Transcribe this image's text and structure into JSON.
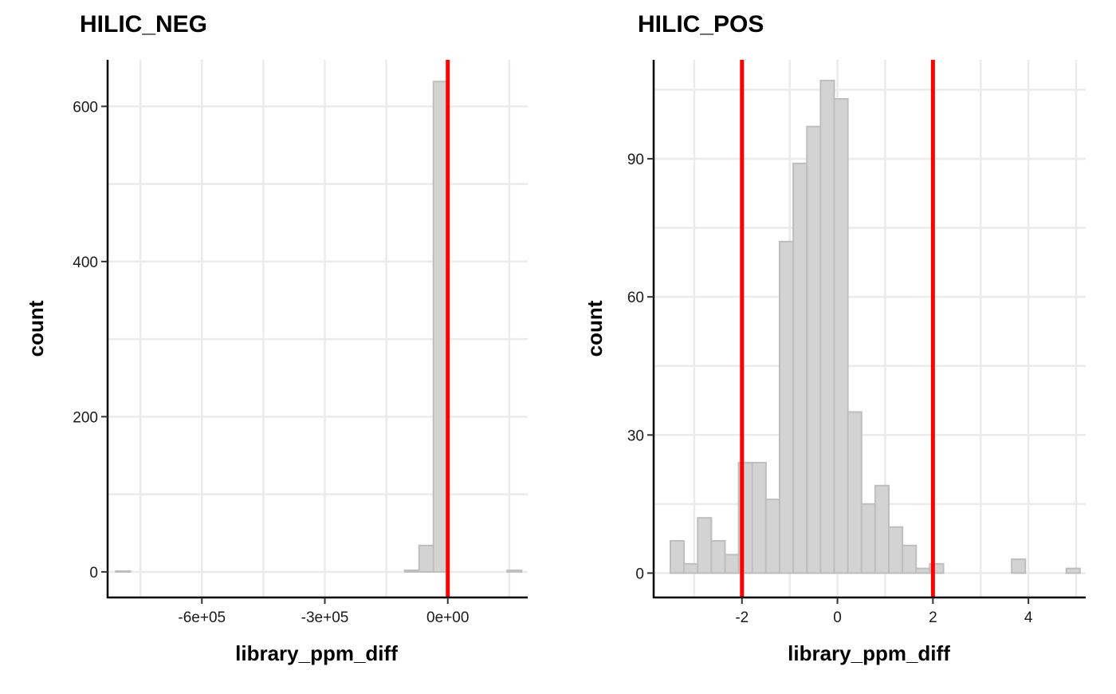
{
  "chart_data": [
    {
      "type": "bar",
      "title": "HILIC_NEG",
      "xlabel": "library_ppm_diff",
      "ylabel": "count",
      "xlim": [
        -830000,
        195000
      ],
      "ylim": [
        -33,
        660
      ],
      "x_ticks": [
        -600000,
        -300000,
        0
      ],
      "x_tick_labels": [
        "-6e+05",
        "-3e+05",
        "0e+00"
      ],
      "x_minor_grid": [
        -750000,
        -450000,
        -150000,
        150000
      ],
      "y_ticks": [
        0,
        200,
        400,
        600
      ],
      "y_tick_labels": [
        "0",
        "200",
        "400",
        "600"
      ],
      "y_minor_grid": [
        100,
        300,
        500
      ],
      "grid": true,
      "vlines": [
        0
      ],
      "bins": [
        {
          "x0": -810000,
          "x1": -775000,
          "count": 1
        },
        {
          "x0": -775000,
          "x1": -105000,
          "count": 0
        },
        {
          "x0": -105000,
          "x1": -70000,
          "count": 2
        },
        {
          "x0": -70000,
          "x1": -35000,
          "count": 34
        },
        {
          "x0": -35000,
          "x1": 0,
          "count": 632
        },
        {
          "x0": 0,
          "x1": 145000,
          "count": 0
        },
        {
          "x0": 145000,
          "x1": 180000,
          "count": 2
        }
      ]
    },
    {
      "type": "bar",
      "title": "HILIC_POS",
      "xlabel": "library_ppm_diff",
      "ylabel": "count",
      "xlim": [
        -3.85,
        5.2
      ],
      "ylim": [
        -5.3,
        111.5
      ],
      "x_ticks": [
        -2,
        0,
        2,
        4
      ],
      "x_tick_labels": [
        "-2",
        "0",
        "2",
        "4"
      ],
      "x_minor_grid": [
        -3,
        -1,
        1,
        3,
        5
      ],
      "y_ticks": [
        0,
        30,
        60,
        90
      ],
      "y_tick_labels": [
        "0",
        "30",
        "60",
        "90"
      ],
      "y_minor_grid": [
        15,
        45,
        75,
        105
      ],
      "grid": true,
      "vlines": [
        -2,
        2
      ],
      "bin_start": -3.5,
      "bin_width": 0.286,
      "counts": [
        7,
        2,
        12,
        7,
        4,
        24,
        24,
        16,
        72,
        89,
        97,
        107,
        103,
        35,
        15,
        19,
        10,
        6,
        1,
        2,
        0,
        0,
        0,
        0,
        0,
        3,
        0,
        0,
        0,
        1
      ]
    }
  ]
}
